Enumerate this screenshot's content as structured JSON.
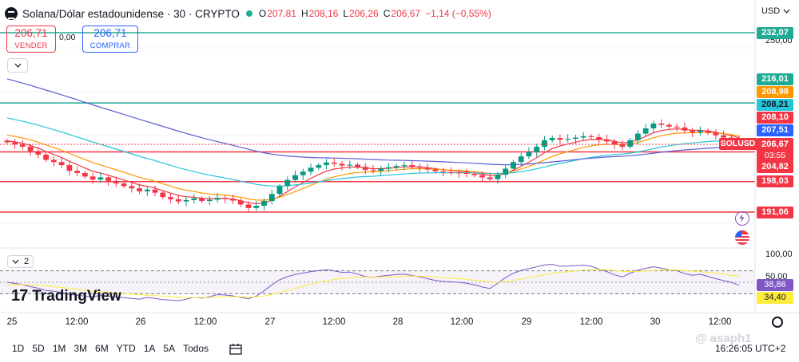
{
  "header": {
    "title": "Solana/Dólar estadounidense · 30 · CRYPTO",
    "ohlc": [
      {
        "k": "O",
        "v": "207,81"
      },
      {
        "k": "H",
        "v": "208,16"
      },
      {
        "k": "L",
        "v": "206,26"
      },
      {
        "k": "C",
        "v": "206,67"
      },
      {
        "k": "",
        "v": "−1,14 (−0,55%)"
      }
    ],
    "currency": "USD"
  },
  "trade": {
    "sell_price": "206,71",
    "sell_label": "VENDER",
    "spread": "0,00",
    "buy_price": "206,71",
    "buy_label": "COMPRAR"
  },
  "price_scale": {
    "top_label": "250,00",
    "labels": [
      {
        "text": "232,07",
        "price": 232.07,
        "bg": "#22ab94"
      },
      {
        "text": "216,01",
        "price": 216.01,
        "bg": "#22ab94"
      },
      {
        "text": "208,98",
        "price": 208.98,
        "bg": "#ff9800"
      },
      {
        "text": "208,21",
        "price": 208.21,
        "bg": "#26c6da",
        "fg": "#131722"
      },
      {
        "text": "208,10",
        "price": 208.1,
        "bg": "#f23645"
      },
      {
        "text": "207,51",
        "price": 207.51,
        "bg": "#2962ff"
      },
      {
        "text": "204,82",
        "price": 204.82,
        "bg": "#f23645"
      },
      {
        "text": "198,03",
        "price": 198.03,
        "bg": "#f23645"
      },
      {
        "text": "191,06",
        "price": 191.06,
        "bg": "#f23645"
      }
    ],
    "current": {
      "symbol": "SOLUSD",
      "price": "206,67",
      "countdown": "03:55"
    }
  },
  "horizontal_lines": [
    {
      "price": 232.07,
      "color": "#22ab94"
    },
    {
      "price": 216.01,
      "color": "#22ab94"
    },
    {
      "price": 204.82,
      "color": "#f23645"
    },
    {
      "price": 198.03,
      "color": "#f23645"
    },
    {
      "price": 191.06,
      "color": "#f23645"
    }
  ],
  "rsi": {
    "toggle_count": "2",
    "scale_top": "100,00",
    "scale_mid": "50,00",
    "value_rsi": "38,86",
    "value_ma": "34,40",
    "rsi_color": "#7e57c2",
    "ma_color": "#ffeb3b"
  },
  "time_axis": [
    "25",
    "12:00",
    "26",
    "12:00",
    "27",
    "12:00",
    "28",
    "12:00",
    "29",
    "12:00",
    "30",
    "12:00"
  ],
  "timeframes": [
    "1D",
    "5D",
    "1M",
    "3M",
    "6M",
    "YTD",
    "1A",
    "5A",
    "Todos"
  ],
  "clock": "16:26:05 UTC+2",
  "branding": "TradingView",
  "watermark": "@ asaph1",
  "chart_data": {
    "type": "candlestick",
    "symbol": "SOLUSD",
    "interval": "30",
    "close_series": [
      207,
      206.5,
      206,
      205,
      204.2,
      203,
      202.5,
      201.8,
      200.5,
      200,
      199.2,
      198.5,
      199,
      198.2,
      197.6,
      197,
      196.5,
      195.8,
      196.2,
      195.5,
      194.5,
      194,
      193.5,
      193.8,
      194.2,
      193.6,
      193.9,
      194.3,
      194.1,
      193.7,
      192.8,
      192,
      192.5,
      193.6,
      195.2,
      197,
      198.4,
      199.5,
      200.3,
      201.2,
      201.8,
      202.4,
      202.1,
      201.7,
      201.9,
      201.4,
      200.7,
      200.5,
      201,
      201.3,
      201.6,
      201.8,
      201.5,
      201.2,
      200.8,
      200.4,
      200.2,
      200.1,
      200,
      199.8,
      199.5,
      199,
      198.6,
      199.6,
      201,
      202.5,
      203.8,
      204.8,
      206,
      207.5,
      208,
      207.6,
      207.8,
      208.1,
      208.4,
      208.2,
      207.7,
      207.2,
      206.5,
      206,
      207.5,
      209,
      210.2,
      211.3,
      211,
      210.6,
      210.4,
      209.7,
      209.3,
      209.7,
      209.2,
      208.6,
      208.1,
      207.6,
      206.7
    ],
    "ylim": [
      188,
      252
    ]
  }
}
